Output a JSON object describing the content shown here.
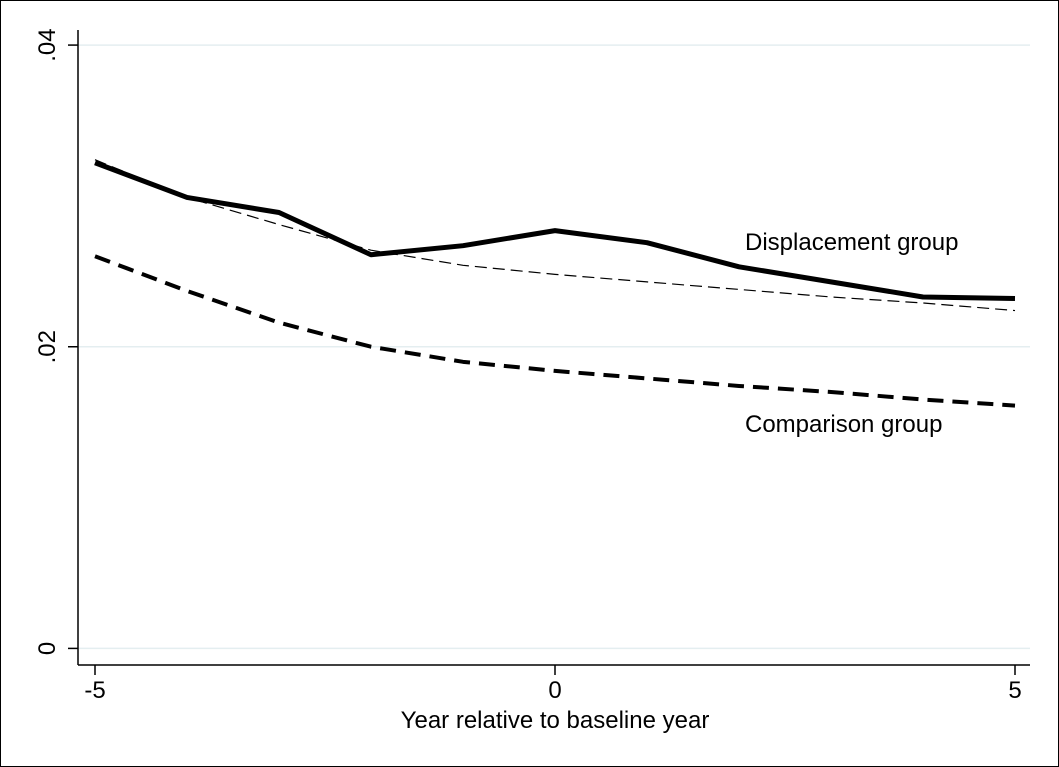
{
  "chart_data": {
    "type": "line",
    "x": [
      -5,
      -4,
      -3,
      -2,
      -1,
      0,
      1,
      2,
      3,
      4,
      5
    ],
    "xlabel": "Year relative to baseline year",
    "xlim": [
      -5.2,
      5.2
    ],
    "xticks": [
      -5,
      0,
      5
    ],
    "ylim": [
      -0.0011,
      0.041
    ],
    "yticks": [
      0,
      {
        "value": 0.02,
        "label": ".02"
      },
      {
        "value": 0.04,
        "label": ".04"
      }
    ],
    "grid": true,
    "series": [
      {
        "name": "Displacement group",
        "color": "#000000",
        "style": "solid",
        "values": [
          0.0322,
          0.0299,
          0.0289,
          0.0261,
          0.0267,
          0.0277,
          0.0269,
          0.0253,
          0.0243,
          0.0233,
          0.0232
        ]
      },
      {
        "color": "#000000",
        "style": "thin-dashed",
        "values": [
          0.0324,
          0.0299,
          0.0281,
          0.0264,
          0.0254,
          0.0248,
          0.0243,
          0.0238,
          0.0233,
          0.0229,
          0.0224
        ]
      },
      {
        "name": "Comparison group",
        "color": "#000000",
        "style": "dashed",
        "values": [
          0.026,
          0.0237,
          0.0216,
          0.02,
          0.019,
          0.0184,
          0.0179,
          0.0174,
          0.017,
          0.0165,
          0.0161
        ]
      }
    ]
  }
}
